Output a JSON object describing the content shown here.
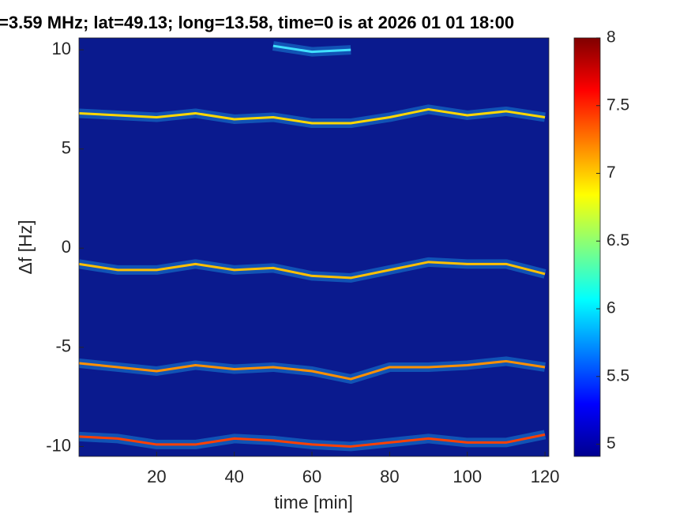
{
  "chart_data": {
    "type": "spectrogram",
    "title": "=3.59 MHz;  lat=49.13; long=13.58, time=0 is at 2026 01 01 18:00",
    "xlabel": "time [min]",
    "ylabel": "Δf [Hz]",
    "x": [
      0,
      10,
      20,
      30,
      40,
      50,
      60,
      70,
      80,
      90,
      100,
      110,
      120
    ],
    "series": [
      {
        "color": "#ffd700",
        "values": [
          6.8,
          6.7,
          6.6,
          6.8,
          6.5,
          6.6,
          6.3,
          6.3,
          6.6,
          7.0,
          6.7,
          6.9,
          6.6
        ]
      },
      {
        "color": "#ffc000",
        "values": [
          -0.8,
          -1.1,
          -1.1,
          -0.8,
          -1.1,
          -1.0,
          -1.4,
          -1.5,
          -1.1,
          -0.7,
          -0.8,
          -0.8,
          -1.3
        ]
      },
      {
        "color": "#ff9000",
        "values": [
          -5.8,
          -6.0,
          -6.2,
          -5.9,
          -6.1,
          -6.0,
          -6.2,
          -6.6,
          -6.0,
          -6.0,
          -5.9,
          -5.7,
          -6.0
        ]
      },
      {
        "color": "#ff4000",
        "values": [
          -9.5,
          -9.6,
          -9.9,
          -9.9,
          -9.6,
          -9.7,
          -9.9,
          -10.0,
          -9.8,
          -9.6,
          -9.8,
          -9.8,
          -9.4
        ]
      },
      {
        "color": "#40e0ff",
        "values": [
          null,
          null,
          null,
          null,
          null,
          10.2,
          9.9,
          10.0,
          null,
          null,
          null,
          null,
          null
        ]
      }
    ],
    "xlim": [
      0,
      121
    ],
    "xticks": [
      20,
      40,
      60,
      80,
      100,
      120
    ],
    "ylim": [
      -10.5,
      10.6
    ],
    "yticks": [
      -10,
      -5,
      0,
      5,
      10
    ],
    "clim": [
      4.91,
      8
    ],
    "cticks": [
      5,
      5.5,
      6,
      6.5,
      7,
      7.5,
      8
    ],
    "plot_background": "#0a1a8e",
    "colormap": [
      "#00008f",
      "#0000ff",
      "#0080ff",
      "#00ffff",
      "#80ff80",
      "#ffff00",
      "#ff8000",
      "#ff0000",
      "#800000"
    ]
  }
}
